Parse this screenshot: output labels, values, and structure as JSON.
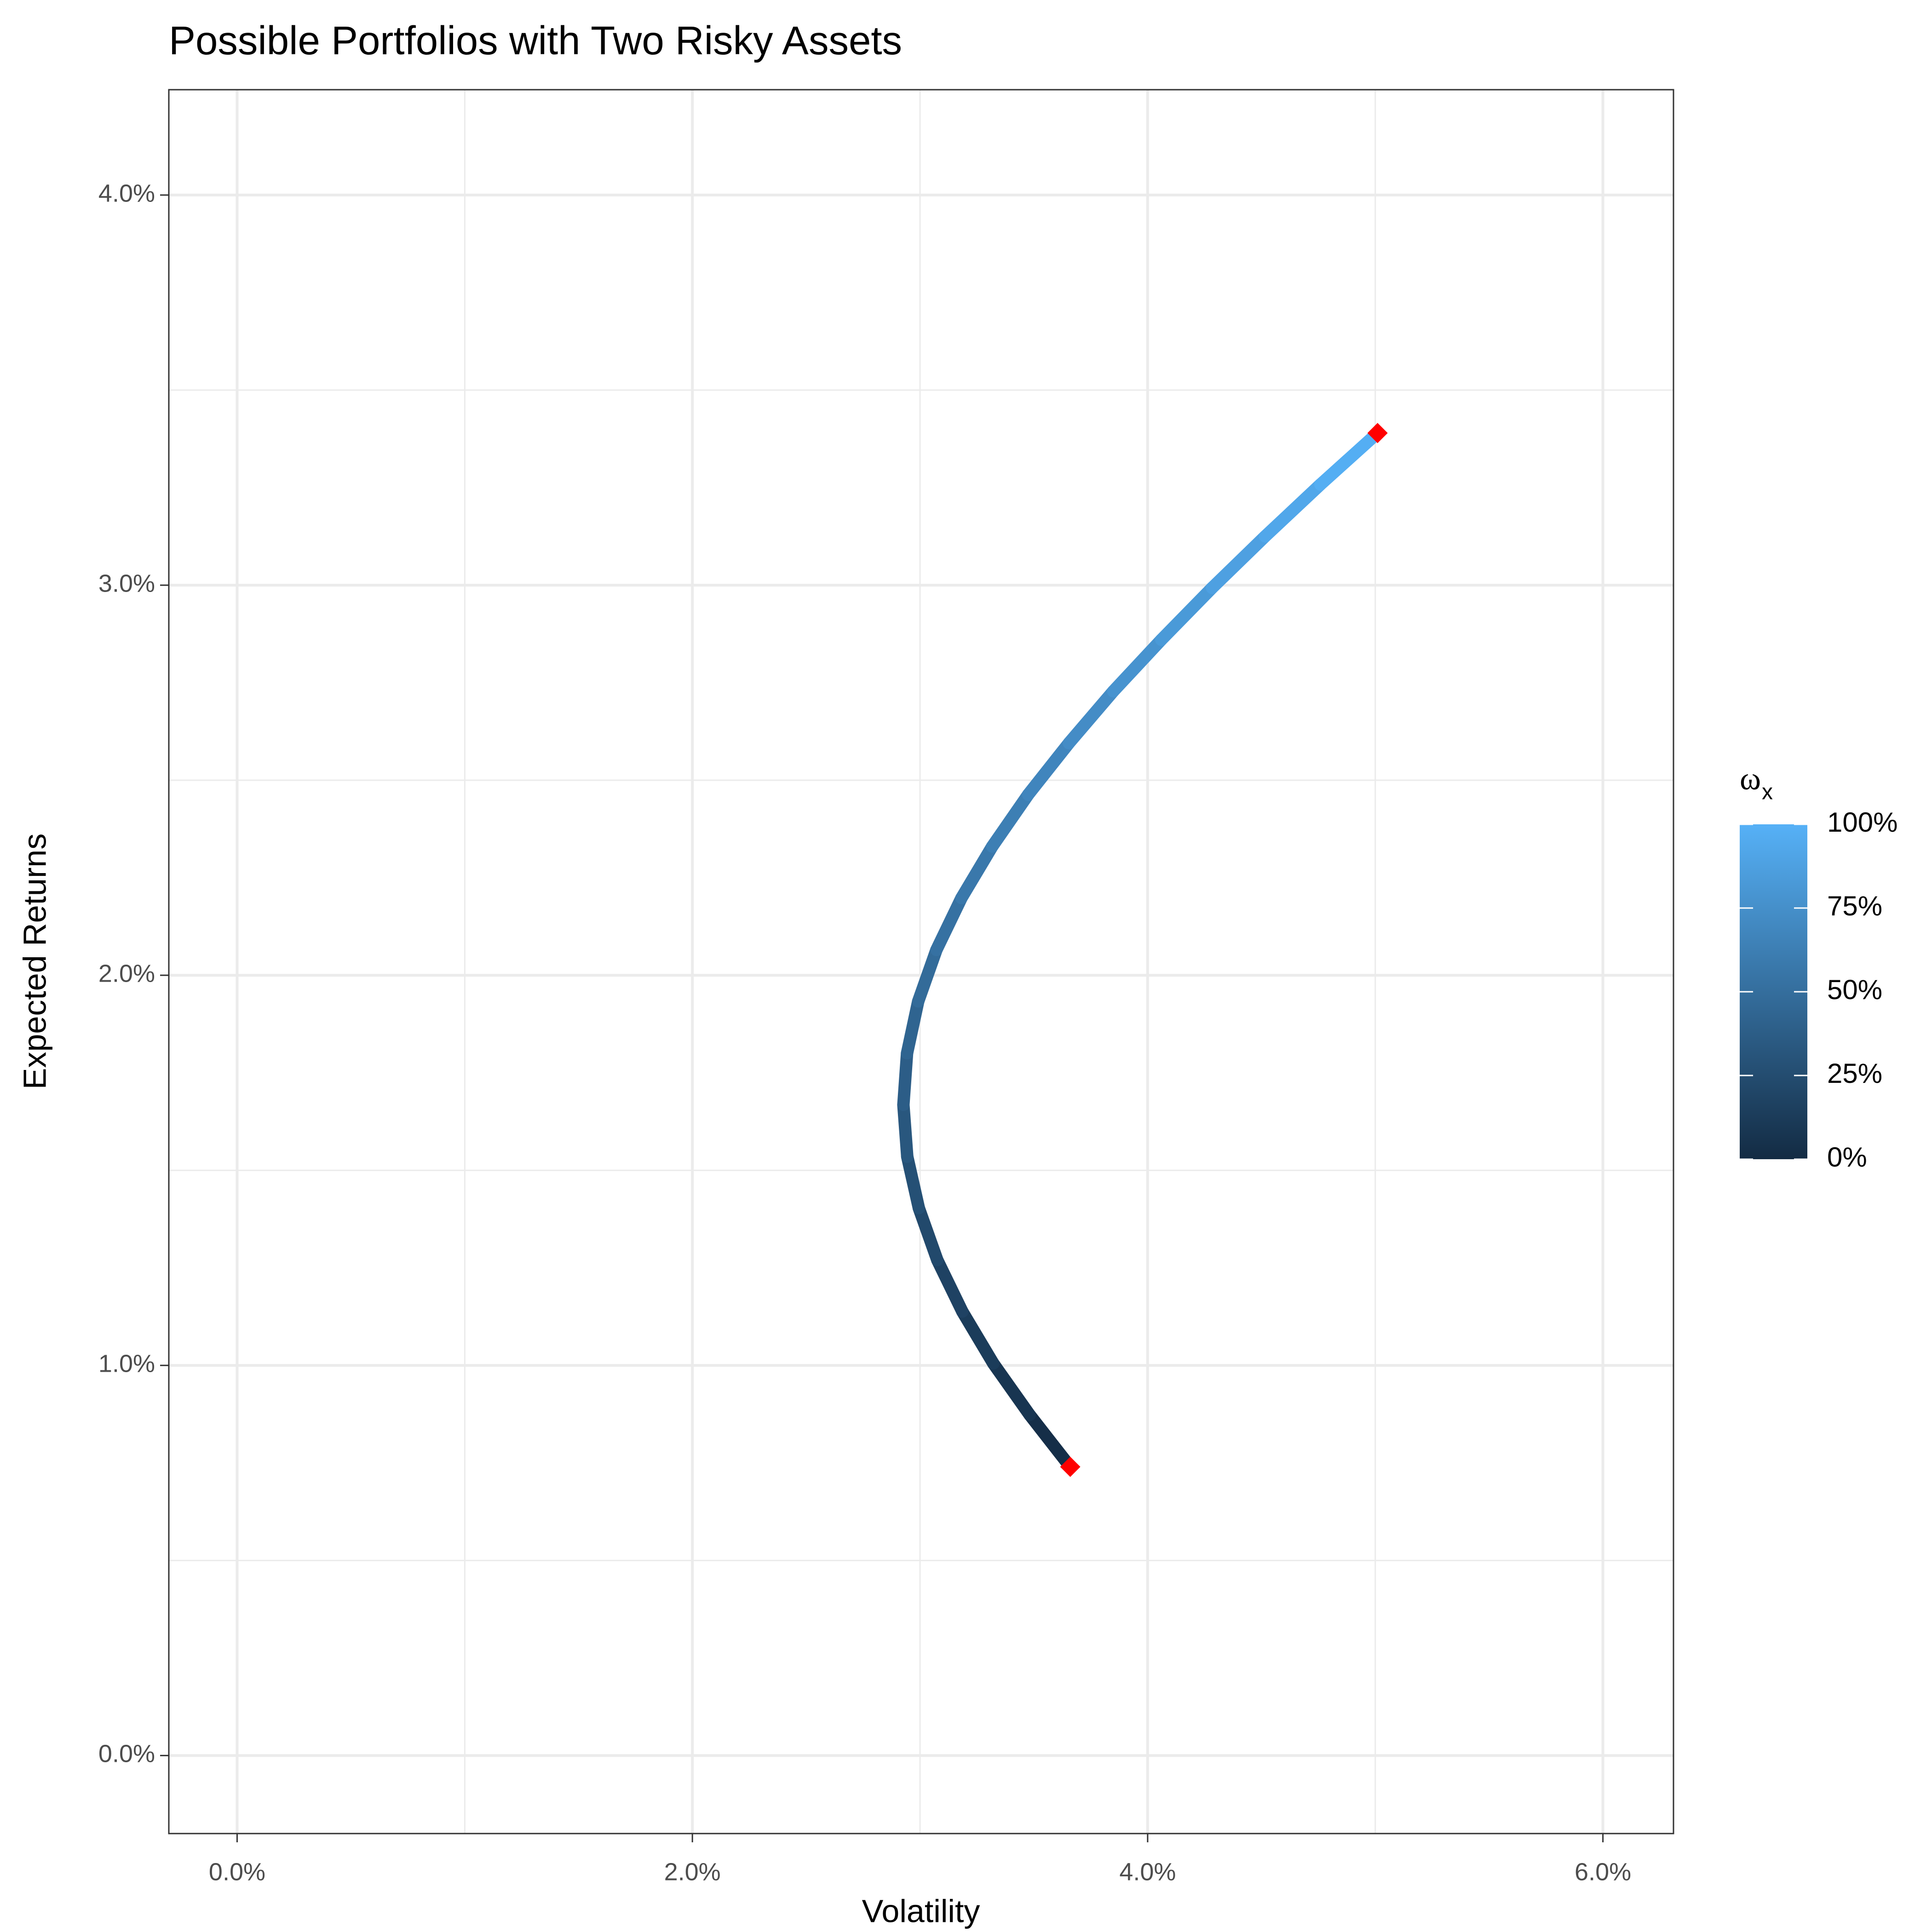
{
  "chart_data": {
    "type": "line",
    "title": "Possible Portfolios with Two Risky Assets",
    "x_label": "Volatility",
    "y_label": "Expected Returns",
    "x": [
      3.66,
      3.482,
      3.322,
      3.186,
      3.076,
      2.995,
      2.944,
      2.927,
      2.943,
      2.992,
      3.072,
      3.182,
      3.317,
      3.475,
      3.654,
      3.849,
      4.06,
      4.283,
      4.516,
      4.759,
      5.01
    ],
    "series": [
      {
        "values": [
          0.74,
          0.873,
          1.005,
          1.138,
          1.27,
          1.403,
          1.535,
          1.668,
          1.8,
          1.933,
          2.065,
          2.198,
          2.33,
          2.463,
          2.595,
          2.728,
          2.86,
          2.993,
          3.125,
          3.258,
          3.39
        ]
      }
    ],
    "weights": [
      0,
      5,
      10,
      15,
      20,
      25,
      30,
      35,
      40,
      45,
      50,
      55,
      60,
      65,
      70,
      75,
      80,
      85,
      90,
      95,
      100
    ],
    "points": {
      "color": "#ff0000",
      "x": [
        3.66,
        5.01
      ],
      "y": [
        0.74,
        3.39
      ]
    },
    "colorbar": {
      "title": "ω",
      "title_sub": "x",
      "low_color": "#132b43",
      "high_color": "#56b1f7",
      "lim": [
        0,
        100
      ],
      "ticks": [
        {
          "value": 0,
          "label": "0%"
        },
        {
          "value": 25,
          "label": "25%"
        },
        {
          "value": 50,
          "label": "50%"
        },
        {
          "value": 75,
          "label": "75%"
        },
        {
          "value": 100,
          "label": "100%"
        }
      ]
    },
    "xlim": [
      -0.3,
      6.31
    ],
    "ylim": [
      -0.2,
      4.27
    ],
    "xticks": [
      {
        "value": 0,
        "label": "0.0%"
      },
      {
        "value": 2,
        "label": "2.0%"
      },
      {
        "value": 4,
        "label": "4.0%"
      },
      {
        "value": 6,
        "label": "6.0%"
      }
    ],
    "yticks": [
      {
        "value": 0,
        "label": "0.0%"
      },
      {
        "value": 1,
        "label": "1.0%"
      },
      {
        "value": 2,
        "label": "2.0%"
      },
      {
        "value": 3,
        "label": "3.0%"
      },
      {
        "value": 4,
        "label": "4.0%"
      }
    ],
    "xminor": [
      1,
      3,
      5
    ],
    "yminor": [
      0.5,
      1.5,
      2.5,
      3.5
    ],
    "grid": true
  }
}
